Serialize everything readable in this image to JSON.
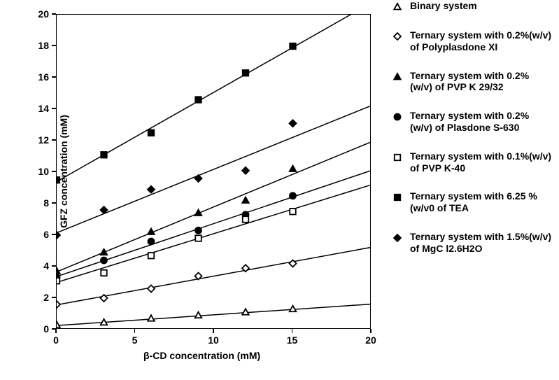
{
  "chart": {
    "type": "scatter+line",
    "background_color": "#ffffff",
    "xlabel": "β-CD concentration (mM)",
    "ylabel": "GFZ concentration (mM)",
    "label_fontsize": 14,
    "tick_fontsize": 14,
    "font_weight": "bold",
    "xlim": [
      0,
      20
    ],
    "ylim": [
      0,
      20
    ],
    "xticks": [
      0,
      5,
      10,
      15,
      20
    ],
    "yticks": [
      0,
      2,
      4,
      6,
      8,
      10,
      12,
      14,
      16,
      18,
      20
    ],
    "axis_color": "#000000",
    "line_color": "#000000",
    "line_width": 1.5,
    "marker_size": 10,
    "marker_stroke_width": 1.8,
    "series": [
      {
        "name": "Binary system",
        "marker": "triangle",
        "fill": "#ffffff",
        "stroke": "#000000",
        "x": [
          0,
          3,
          6,
          9,
          12,
          15
        ],
        "y": [
          0.3,
          0.45,
          0.7,
          0.9,
          1.1,
          1.3
        ],
        "fit": {
          "intercept": 0.26,
          "slope": 0.068
        }
      },
      {
        "name": "Ternary system with 0.2%(w/v) of Polyplasdone XI",
        "marker": "diamond",
        "fill": "#ffffff",
        "stroke": "#000000",
        "x": [
          0,
          3,
          6,
          9,
          12,
          15
        ],
        "y": [
          1.6,
          2.0,
          2.6,
          3.4,
          3.9,
          4.2
        ],
        "fit": {
          "intercept": 1.57,
          "slope": 0.183
        }
      },
      {
        "name": "Ternary system with 0.2% (w/v) of PVP K 29/32",
        "marker": "triangle",
        "fill": "#000000",
        "stroke": "#000000",
        "x": [
          0,
          3,
          6,
          9,
          12,
          15
        ],
        "y": [
          3.7,
          4.9,
          6.2,
          7.4,
          8.2,
          10.2
        ],
        "fit": {
          "intercept": 3.67,
          "slope": 0.413
        }
      },
      {
        "name": "Ternary system with 0.2% (w/v) of Plasdone S-630",
        "marker": "circle",
        "fill": "#000000",
        "stroke": "#000000",
        "x": [
          0,
          3,
          6,
          9,
          12,
          15
        ],
        "y": [
          3.3,
          4.4,
          5.6,
          6.3,
          7.3,
          8.5
        ],
        "fit": {
          "intercept": 3.37,
          "slope": 0.337
        }
      },
      {
        "name": "Ternary system with 0.1%(w/v) of PVP K-40",
        "marker": "square",
        "fill": "#ffffff",
        "stroke": "#000000",
        "x": [
          0,
          3,
          6,
          9,
          12,
          15
        ],
        "y": [
          3.1,
          3.6,
          4.7,
          5.8,
          7.0,
          7.5
        ],
        "fit": {
          "intercept": 3.0,
          "slope": 0.31
        }
      },
      {
        "name": "Ternary system with 6.25 % (w/v0 of TEA",
        "marker": "square",
        "fill": "#000000",
        "stroke": "#000000",
        "x": [
          0,
          3,
          6,
          9,
          12,
          15
        ],
        "y": [
          9.5,
          11.1,
          12.5,
          14.6,
          16.3,
          18.0
        ],
        "fit": {
          "intercept": 9.4,
          "slope": 0.568
        }
      },
      {
        "name": "Ternary system with 1.5%(w/v) of MgC l2.6H2O",
        "marker": "diamond",
        "fill": "#000000",
        "stroke": "#000000",
        "x": [
          0,
          3,
          6,
          9,
          12,
          15
        ],
        "y": [
          6.0,
          7.6,
          8.9,
          9.6,
          10.1,
          13.1
        ],
        "fit": {
          "intercept": 6.15,
          "slope": 0.404
        }
      }
    ]
  },
  "legend_order": [
    "Binary system",
    "Ternary system with 0.2%(w/v) of Polyplasdone XI",
    "Ternary system with 0.2% (w/v) of PVP K 29/32",
    "Ternary system with 0.2% (w/v) of Plasdone S-630",
    "Ternary system with 0.1%(w/v) of PVP K-40",
    "Ternary system with 6.25 % (w/v0 of TEA",
    "Ternary system with 1.5%(w/v) of MgC l2.6H2O"
  ]
}
